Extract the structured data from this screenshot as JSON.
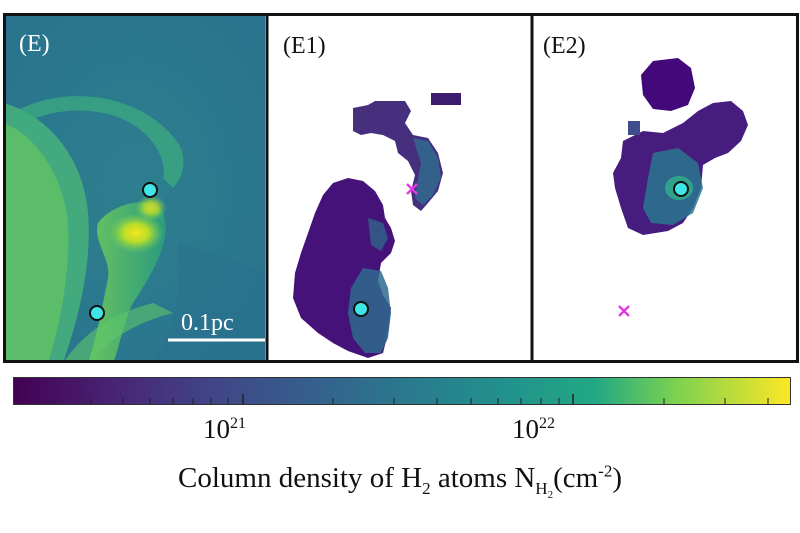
{
  "panels": [
    {
      "id": "E",
      "label": "(E)",
      "label_color": "#ffffff"
    },
    {
      "id": "E1",
      "label": "(E1)",
      "label_color": "#111111"
    },
    {
      "id": "E2",
      "label": "(E2)",
      "label_color": "#111111"
    }
  ],
  "scale_bar": {
    "label": "0.1pc"
  },
  "colorbar": {
    "colormap": "viridis",
    "scale": "log",
    "ticks": [
      {
        "base": "10",
        "exp": "21"
      },
      {
        "base": "10",
        "exp": "22"
      }
    ]
  },
  "axis_title": {
    "prefix": "Column density of H",
    "sub1": "2",
    "middle": " atoms N",
    "sub_h": "H",
    "sub_h_2": "2",
    "unit_open": "(cm",
    "unit_exp": "-2",
    "unit_close": ")"
  },
  "markers": {
    "core_color": "#3ee6e6",
    "cross_color": "#e23be2"
  }
}
